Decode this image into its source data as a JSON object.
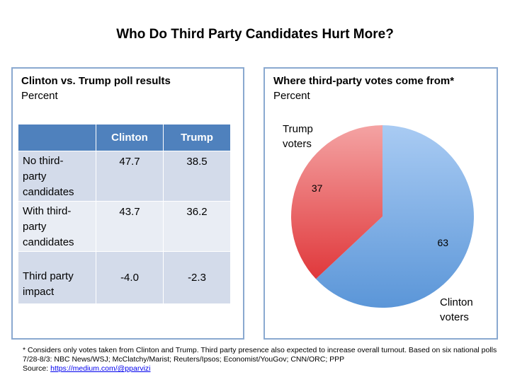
{
  "title": "Who Do Third Party Candidates Hurt More?",
  "left": {
    "title": "Clinton vs. Trump poll results",
    "subtitle": "Percent"
  },
  "right": {
    "title": "Where third-party votes come from*",
    "subtitle": "Percent",
    "labels": {
      "trump_line1": "Trump",
      "trump_line2": "voters",
      "clinton_line1": "Clinton",
      "clinton_line2": "voters"
    }
  },
  "footnote": {
    "text": "* Considers only votes taken from Clinton and Trump. Third party presence also expected to increase overall turnout. Based on six national polls 7/28-8/3: NBC News/WSJ; McClatchy/Marist; Reuters/Ipsos; Economist/YouGov; CNN/ORC; PPP",
    "source_label": "Source: ",
    "source_link": "https://medium.com/@pparvizi"
  },
  "chart_data": [
    {
      "type": "table",
      "title": "Clinton vs. Trump poll results",
      "subtitle": "Percent",
      "columns": [
        "Clinton",
        "Trump"
      ],
      "rows": [
        {
          "label_lines": [
            "No third-",
            "party",
            "candidates"
          ],
          "values": [
            "47.7",
            "38.5"
          ]
        },
        {
          "label_lines": [
            "With third-",
            "party",
            "candidates"
          ],
          "values": [
            "43.7",
            "36.2"
          ]
        },
        {
          "label_lines": [
            "Third party",
            "impact"
          ],
          "values": [
            "-4.0",
            "-2.3"
          ]
        }
      ]
    },
    {
      "type": "pie",
      "title": "Where third-party votes come from*",
      "subtitle": "Percent",
      "slices": [
        {
          "name": "Clinton voters",
          "value": 63,
          "color": "#5b96d8",
          "color_light": "#a9cbf3"
        },
        {
          "name": "Trump voters",
          "value": 37,
          "color": "#e0383b",
          "color_light": "#f4a3a3"
        }
      ]
    }
  ]
}
